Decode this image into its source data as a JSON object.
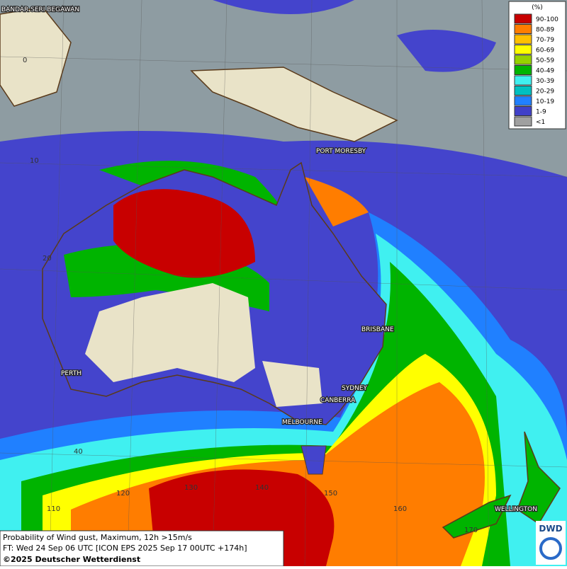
{
  "legend": {
    "title": "(%)",
    "entries": [
      {
        "label": "90-100",
        "color": "#c80000"
      },
      {
        "label": "80-89",
        "color": "#ff7d00"
      },
      {
        "label": "70-79",
        "color": "#ffc000"
      },
      {
        "label": "60-69",
        "color": "#ffff00"
      },
      {
        "label": "50-59",
        "color": "#96d200"
      },
      {
        "label": "40-49",
        "color": "#00b400"
      },
      {
        "label": "30-39",
        "color": "#40f0f0"
      },
      {
        "label": "20-29",
        "color": "#00c0c0"
      },
      {
        "label": "10-19",
        "color": "#2080ff"
      },
      {
        "label": "1-9",
        "color": "#4040c8"
      },
      {
        "label": "<1",
        "color": "#a0a0a0"
      }
    ]
  },
  "cities": [
    "BANDAR SERI BEGAWAN",
    "PORT MORESBY",
    "BRISBANE",
    "PERTH",
    "SYDNEY",
    "CANBERRA",
    "MELBOURNE",
    "WELLINGTON"
  ],
  "grid_labels": [
    "0",
    "10",
    "20",
    "40",
    "110",
    "120",
    "130",
    "140",
    "150",
    "160",
    "170"
  ],
  "footer": {
    "line1": "Probability of Wind gust, Maximum, 12h >15m/s",
    "line2": "FT: Wed 24 Sep 06 UTC [ICON EPS 2025 Sep 17 00UTC +174h]",
    "line3": "©2025 Deutscher Wetterdienst"
  },
  "logo": "DWD"
}
